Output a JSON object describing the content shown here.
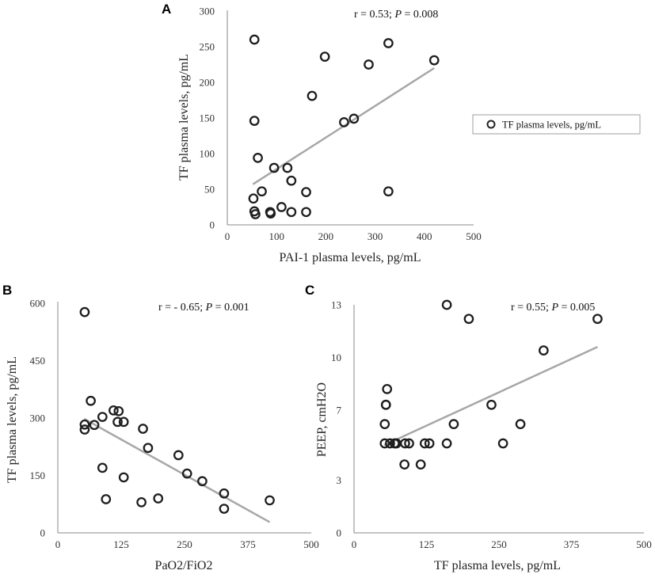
{
  "chart_data": [
    {
      "panel": "A",
      "type": "scatter",
      "xlabel": "PAI-1 plasma levels, pg/mL",
      "ylabel": "TF plasma levels, pg/mL",
      "xlim": [
        0,
        500
      ],
      "ylim": [
        0,
        300
      ],
      "x_ticks": [
        "0",
        "100",
        "200",
        "300",
        "400",
        "500"
      ],
      "y_ticks": [
        "0",
        "50",
        "100",
        "150",
        "200",
        "250",
        "300"
      ],
      "stat_r": "r = 0.53; ",
      "stat_p_label": "P",
      "stat_p": " = 0.008",
      "legend": "TF plasma levels, pg/mL",
      "trendline": {
        "x1": 52,
        "y1": 57,
        "x2": 420,
        "y2": 220
      },
      "series": [
        {
          "name": "TF plasma levels, pg/mL",
          "x": [
            55,
            327,
            198,
            420,
            287,
            172,
            55,
            237,
            257,
            62,
            95,
            122,
            130,
            70,
            160,
            53,
            55,
            57,
            87,
            110,
            88,
            130,
            160,
            327
          ],
          "y": [
            260,
            255,
            236,
            231,
            225,
            181,
            146,
            144,
            149,
            94,
            80,
            80,
            62,
            47,
            46,
            37,
            19,
            15,
            18,
            25,
            16,
            18,
            18,
            47
          ]
        }
      ]
    },
    {
      "panel": "B",
      "type": "scatter",
      "xlabel": "PaO2/FiO2",
      "ylabel": "TF plasma levels, pg/mL",
      "xlim": [
        0,
        500
      ],
      "ylim": [
        0,
        600
      ],
      "x_ticks": [
        "0",
        "125",
        "250",
        "375",
        "500"
      ],
      "y_ticks": [
        "0",
        "150",
        "300",
        "450",
        "600"
      ],
      "stat_r": "r = - 0.65; ",
      "stat_p_label": "P",
      "stat_p": " = 0.001",
      "trendline": {
        "x1": 52,
        "y1": 298,
        "x2": 418,
        "y2": 28
      },
      "series": [
        {
          "name": "TF plasma levels, pg/mL",
          "x": [
            53,
            65,
            53,
            53,
            72,
            88,
            110,
            120,
            130,
            118,
            168,
            178,
            238,
            255,
            285,
            328,
            328,
            88,
            95,
            130,
            165,
            198,
            418
          ],
          "y": [
            577,
            345,
            283,
            270,
            282,
            303,
            320,
            318,
            290,
            290,
            272,
            222,
            203,
            155,
            135,
            103,
            63,
            170,
            88,
            145,
            80,
            90,
            85
          ]
        }
      ]
    },
    {
      "panel": "C",
      "type": "scatter",
      "xlabel": "TF plasma levels, pg/mL",
      "ylabel": "PEEP, cmH2O",
      "xlim": [
        0,
        500
      ],
      "ylim": [
        0,
        13
      ],
      "x_ticks": [
        "0",
        "125",
        "250",
        "375",
        "500"
      ],
      "y_ticks": [
        "0",
        "3",
        "7",
        "10",
        "13"
      ],
      "stat_r": "r = 0.55; ",
      "stat_p_label": "P",
      "stat_p": " = 0.005",
      "trendline": {
        "x1": 52,
        "y1": 5.0,
        "x2": 420,
        "y2": 10.6
      },
      "series": [
        {
          "name": "PEEP, cmH2O",
          "x": [
            160,
            198,
            420,
            327,
            237,
            172,
            287,
            57,
            55,
            55,
            53,
            53,
            62,
            70,
            73,
            88,
            95,
            122,
            130,
            160,
            257,
            87,
            115
          ],
          "y": [
            13,
            12.2,
            12.2,
            10.4,
            7.3,
            6.2,
            6.2,
            8.2,
            7.3,
            7.3,
            6.2,
            5.1,
            5.1,
            5.1,
            5.1,
            5.1,
            5.1,
            5.1,
            5.1,
            5.1,
            5.1,
            3.9,
            3.9
          ]
        }
      ]
    }
  ]
}
